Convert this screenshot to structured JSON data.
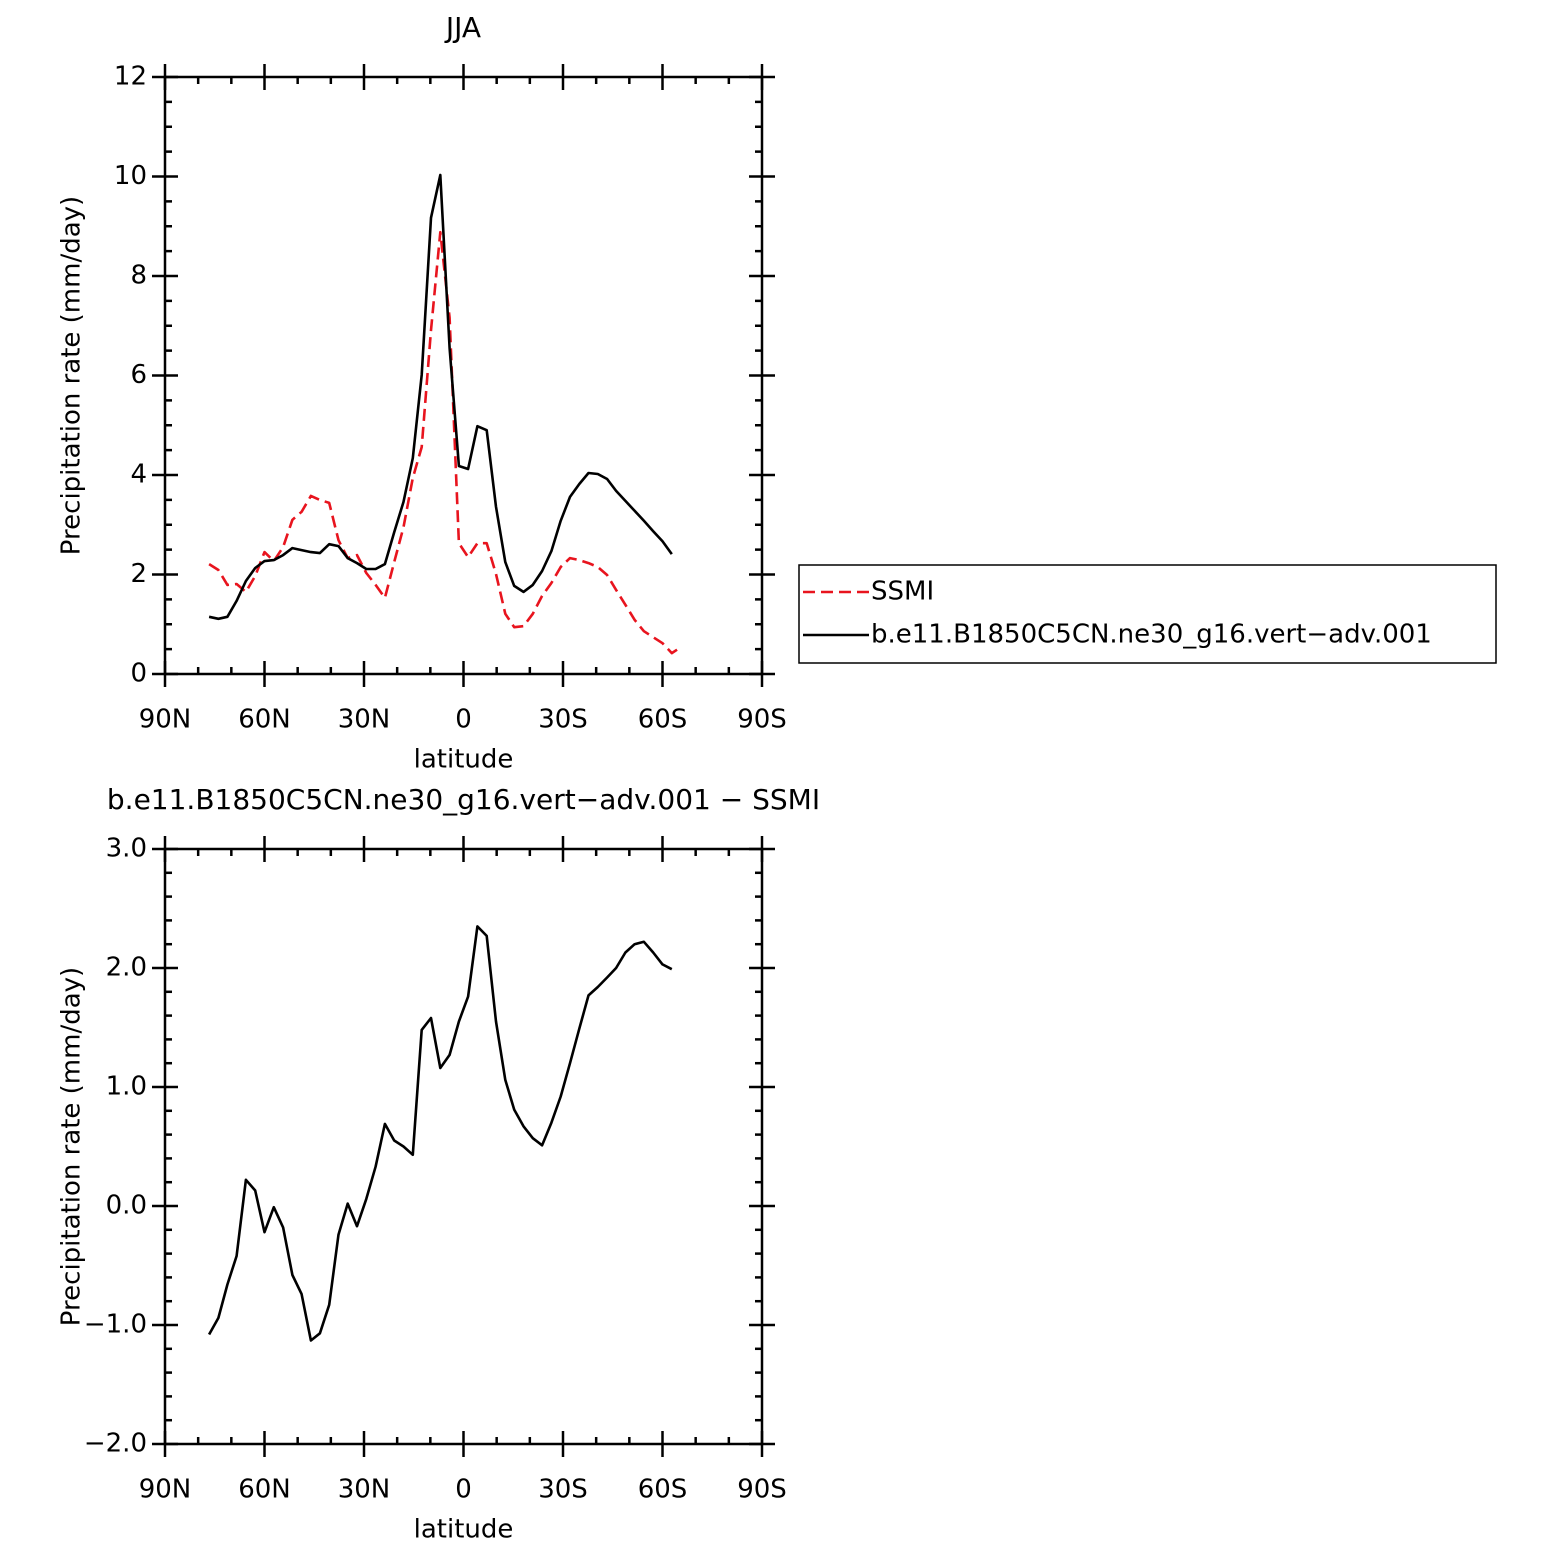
{
  "chart_data": [
    {
      "type": "line",
      "title": "JJA",
      "xlabel": "latitude",
      "ylabel": "Precipitation rate (mm/day)",
      "x": [
        76.7,
        73.9,
        71.2,
        68.4,
        65.6,
        62.8,
        60.0,
        57.2,
        54.4,
        51.6,
        48.8,
        46.0,
        43.3,
        40.5,
        37.7,
        34.9,
        32.1,
        29.3,
        26.5,
        23.7,
        20.9,
        18.1,
        15.3,
        12.6,
        9.8,
        7.0,
        4.2,
        1.4,
        -1.4,
        -4.2,
        -7.0,
        -9.8,
        -12.6,
        -15.3,
        -18.1,
        -20.9,
        -23.7,
        -26.5,
        -29.3,
        -32.1,
        -34.9,
        -37.7,
        -40.5,
        -43.3,
        -46.0,
        -48.8,
        -51.6,
        -54.4,
        -57.2,
        -60.0,
        -62.8,
        -65.6
      ],
      "series": [
        {
          "name": "SSMI",
          "color": "#e8141e",
          "dashed": true,
          "values": [
            2.21,
            2.09,
            1.79,
            1.81,
            1.65,
            1.97,
            2.45,
            2.27,
            2.55,
            3.1,
            3.26,
            3.58,
            3.5,
            3.44,
            2.69,
            2.33,
            2.39,
            2.03,
            1.79,
            1.53,
            2.25,
            2.95,
            3.94,
            4.56,
            6.91,
            8.88,
            7.16,
            2.63,
            2.35,
            2.63,
            2.63,
            2.01,
            1.21,
            0.94,
            0.96,
            1.21,
            1.57,
            1.83,
            2.15,
            2.33,
            2.29,
            2.23,
            2.15,
            1.99,
            1.69,
            1.39,
            1.09,
            0.86,
            0.74,
            0.62,
            0.42,
            0.54
          ]
        },
        {
          "name": "b.e11.B1850C5CN.ne30_g16.vert−adv.001",
          "color": "#000000",
          "dashed": false,
          "values": [
            1.15,
            1.11,
            1.15,
            1.47,
            1.87,
            2.13,
            2.27,
            2.29,
            2.39,
            2.53,
            2.49,
            2.45,
            2.43,
            2.61,
            2.57,
            2.33,
            2.23,
            2.11,
            2.11,
            2.21,
            2.85,
            3.46,
            4.34,
            6.01,
            9.17,
            10.03,
            6.55,
            4.18,
            4.12,
            4.98,
            4.9,
            3.36,
            2.25,
            1.77,
            1.65,
            1.79,
            2.07,
            2.47,
            3.08,
            3.56,
            3.82,
            4.04,
            4.02,
            3.92,
            3.68,
            3.48,
            3.28,
            3.08,
            2.87,
            2.67,
            2.41,
            null
          ]
        }
      ],
      "xlim": [
        90,
        -90
      ],
      "xticks": [
        {
          "value": 90,
          "label": "90N"
        },
        {
          "value": 60,
          "label": "60N"
        },
        {
          "value": 30,
          "label": "30N"
        },
        0,
        {
          "value": -30,
          "label": "30S"
        },
        {
          "value": -60,
          "label": "60S"
        },
        {
          "value": -90,
          "label": "90S"
        }
      ],
      "ylim": [
        0,
        12
      ],
      "yticks": [
        0,
        2,
        4,
        6,
        8,
        10,
        12
      ],
      "legend": "right"
    },
    {
      "type": "line",
      "title": "b.e11.B1850C5CN.ne30_g16.vert−adv.001 − SSMI",
      "xlabel": "latitude",
      "ylabel": "Precipitation rate (mm/day)",
      "x": [
        76.7,
        73.9,
        71.2,
        68.4,
        65.6,
        62.8,
        60.0,
        57.2,
        54.4,
        51.6,
        48.8,
        46.0,
        43.3,
        40.5,
        37.7,
        34.9,
        32.1,
        29.3,
        26.5,
        23.7,
        20.9,
        18.1,
        15.3,
        12.6,
        9.8,
        7.0,
        4.2,
        1.4,
        -1.4,
        -4.2,
        -7.0,
        -9.8,
        -12.6,
        -15.3,
        -18.1,
        -20.9,
        -23.7,
        -26.5,
        -29.3,
        -32.1,
        -34.9,
        -37.7,
        -40.5,
        -43.3,
        -46.0,
        -48.8,
        -51.6,
        -54.4,
        -57.2,
        -60.0,
        -62.8
      ],
      "values": [
        -1.08,
        -0.94,
        -0.66,
        -0.42,
        0.22,
        0.13,
        -0.22,
        -0.01,
        -0.18,
        -0.58,
        -0.74,
        -1.13,
        -1.07,
        -0.83,
        -0.24,
        0.02,
        -0.17,
        0.06,
        0.33,
        0.69,
        0.55,
        0.5,
        0.43,
        1.48,
        1.58,
        1.16,
        1.27,
        1.55,
        1.76,
        2.35,
        2.27,
        1.55,
        1.06,
        0.81,
        0.67,
        0.57,
        0.51,
        0.7,
        0.92,
        1.2,
        1.49,
        1.77,
        1.84,
        1.92,
        2.0,
        2.13,
        2.2,
        2.22,
        2.13,
        2.03,
        1.99
      ],
      "color": "#000000",
      "xlim": [
        90,
        -90
      ],
      "xticks": [
        {
          "value": 90,
          "label": "90N"
        },
        {
          "value": 60,
          "label": "60N"
        },
        {
          "value": 30,
          "label": "30N"
        },
        0,
        {
          "value": -30,
          "label": "30S"
        },
        {
          "value": -60,
          "label": "60S"
        },
        {
          "value": -90,
          "label": "90S"
        }
      ],
      "ylim": [
        -2,
        3
      ],
      "yticks": [
        {
          "value": -2,
          "label": "−2.0"
        },
        {
          "value": -1,
          "label": "−1.0"
        },
        {
          "value": 0,
          "label": "0.0"
        },
        {
          "value": 1,
          "label": "1.0"
        },
        {
          "value": 2,
          "label": "2.0"
        },
        {
          "value": 3,
          "label": "3.0"
        }
      ]
    }
  ]
}
